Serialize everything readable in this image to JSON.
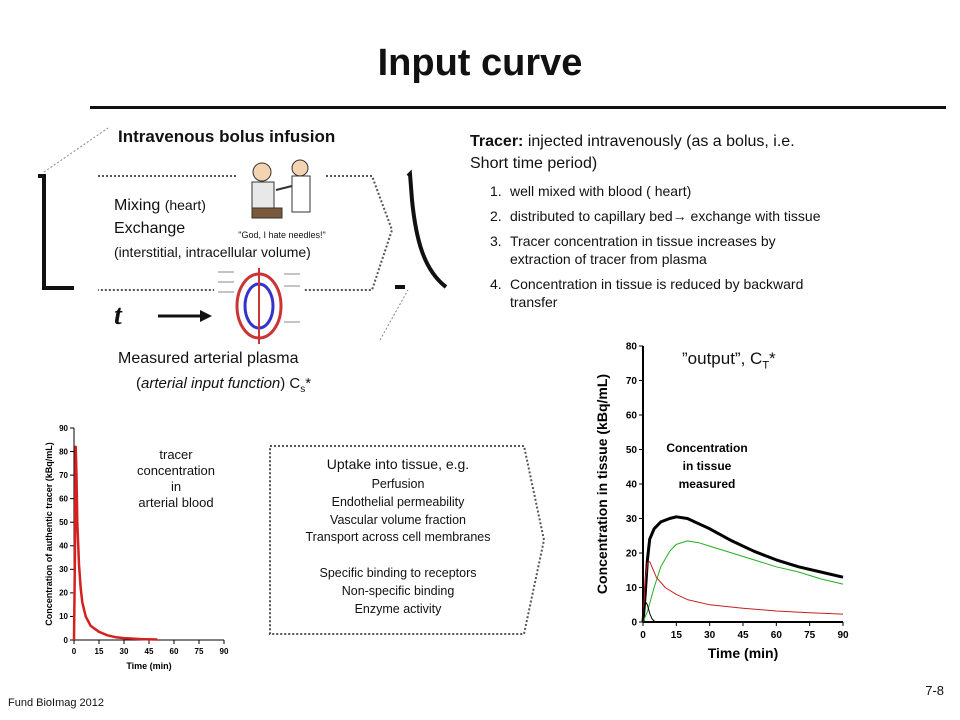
{
  "slide": {
    "title": "Input curve",
    "footer_left": "Fund BioImag 2012",
    "page_number": "7-8"
  },
  "left": {
    "bolus_label": "Intravenous bolus infusion",
    "mixing": "Mixing",
    "mixing_paren": "(heart)",
    "exchange": "Exchange",
    "exchange_detail": "(interstitial, intracellular volume)",
    "time_symbol": "t",
    "cartoon_caption": "\"God, I hate needles!\"",
    "measured_line1": "Measured arterial plasma",
    "measured_line2_italic": "arterial input function",
    "measured_symbol": "C",
    "measured_sub": "s",
    "measured_star": "*"
  },
  "tracer": {
    "label": "Tracer:",
    "text": " injected intravenously (as a bolus, i.e.",
    "text2": "Short time period)",
    "steps": [
      {
        "num": "1.",
        "text": "well mixed with blood ( heart)"
      },
      {
        "num": "2.",
        "text": "distributed to capillary bed→ exchange with tissue"
      },
      {
        "num": "3.",
        "text": "Tracer concentration in tissue increases by",
        "text2": "extraction of tracer from plasma"
      },
      {
        "num": "4.",
        "text": "Concentration in tissue is reduced by backward",
        "text2": "transfer"
      }
    ]
  },
  "uptake": {
    "title": "Uptake into tissue, e.g.",
    "items": [
      "Perfusion",
      "Endothelial permeability",
      "Vascular volume fraction",
      "Transport across cell membranes",
      "",
      "Specific binding to receptors",
      "Non-specific binding",
      "Enzyme activity"
    ]
  },
  "blood_label": [
    "tracer",
    "concentration",
    "in",
    "arterial blood"
  ],
  "output_label": {
    "prefix": "”output”, C",
    "sub": "T",
    "star": "*"
  },
  "chart_data": [
    {
      "type": "line",
      "title": "",
      "xlabel": "Time (min)",
      "ylabel": "Concentration of authentic tracer (kBq/mL)",
      "xlim": [
        0,
        90
      ],
      "ylim": [
        0,
        90
      ],
      "xticks": [
        "0",
        "15",
        "30",
        "45",
        "60",
        "75",
        "90"
      ],
      "yticks": [
        "0",
        "10",
        "20",
        "30",
        "40",
        "50",
        "60",
        "70",
        "80",
        "90"
      ],
      "annotation": [
        "tracer",
        "concentration",
        "in",
        "arterial blood"
      ],
      "colors": {
        "series": "#d42020"
      },
      "series": [
        {
          "x": [
            0,
            0.5,
            1,
            1.5,
            2,
            3,
            4,
            5,
            7,
            10,
            15,
            20,
            25,
            30,
            40,
            50
          ],
          "y": [
            0,
            30,
            82,
            70,
            50,
            32,
            22,
            16,
            10,
            6,
            3.5,
            2,
            1.2,
            0.8,
            0.4,
            0.2
          ]
        }
      ]
    },
    {
      "type": "line",
      "title": "",
      "xlabel": "Time (min)",
      "ylabel": "Concentration in tissue (kBq/mL)",
      "xlim": [
        0,
        90
      ],
      "ylim": [
        0,
        80
      ],
      "xticks": [
        "0",
        "15",
        "30",
        "45",
        "60",
        "75",
        "90"
      ],
      "yticks": [
        "0",
        "10",
        "20",
        "30",
        "40",
        "50",
        "60",
        "70",
        "80"
      ],
      "annotation": [
        "Concentration",
        "in tissue",
        "measured"
      ],
      "colors": {
        "total": "#000000",
        "green": "#20b020",
        "red": "#c82020"
      },
      "series": [
        {
          "x": [
            0,
            1,
            2,
            3,
            5,
            8,
            12,
            15,
            20,
            25,
            30,
            40,
            50,
            60,
            70,
            80,
            90
          ],
          "y": [
            0,
            8,
            18,
            24,
            27,
            29,
            30,
            30.5,
            30,
            28.5,
            27,
            23.5,
            20.5,
            18,
            16,
            14.5,
            13
          ]
        },
        {
          "x": [
            0,
            2,
            5,
            8,
            12,
            15,
            20,
            25,
            30,
            40,
            50,
            60,
            70,
            80,
            90
          ],
          "y": [
            0,
            3,
            10,
            16,
            20.5,
            22.5,
            23.5,
            23,
            22,
            20,
            18,
            16,
            14.5,
            12.5,
            11
          ]
        },
        {
          "x": [
            0,
            1,
            2,
            3,
            4,
            6,
            10,
            15,
            20,
            30,
            45,
            60,
            75,
            90
          ],
          "y": [
            0,
            12,
            17,
            17.5,
            16,
            13,
            10,
            8,
            6.5,
            5,
            4,
            3.2,
            2.7,
            2.3
          ]
        },
        {
          "x": [
            0,
            0.5,
            1,
            2,
            3,
            4,
            5,
            6
          ],
          "y": [
            0,
            4,
            6,
            5,
            2.5,
            1,
            0.3,
            0
          ]
        }
      ]
    }
  ]
}
